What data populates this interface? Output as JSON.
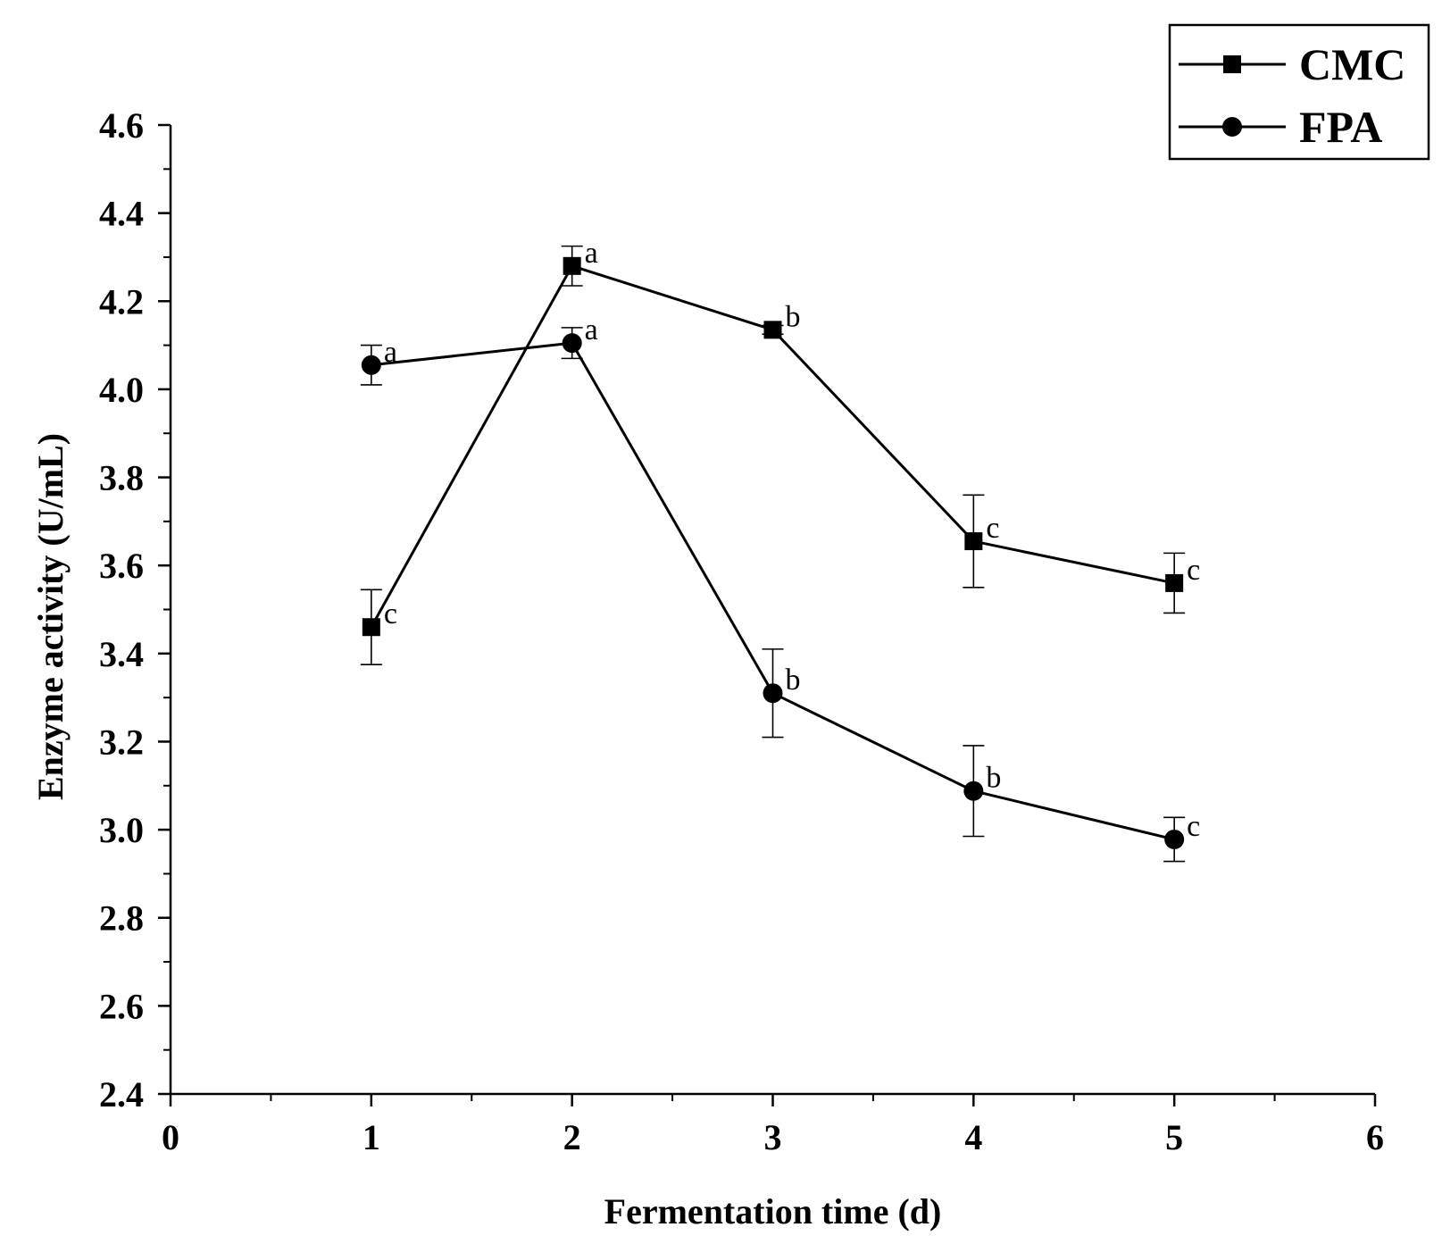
{
  "chart_data": {
    "type": "line",
    "title": "",
    "xlabel": "Fermentation time (d)",
    "ylabel": "Enzyme activity (U/mL)",
    "xlim": [
      0,
      6
    ],
    "ylim": [
      2.4,
      4.6
    ],
    "x_ticks": [
      "0",
      "1",
      "2",
      "3",
      "4",
      "5",
      "6"
    ],
    "y_ticks": [
      "2.4",
      "2.6",
      "2.8",
      "3.0",
      "3.2",
      "3.4",
      "3.6",
      "3.8",
      "4.0",
      "4.2",
      "4.4",
      "4.6"
    ],
    "x": [
      1,
      2,
      3,
      4,
      5
    ],
    "grid": false,
    "legend_position": "top-right",
    "series": [
      {
        "name": "CMC",
        "marker": "square",
        "values": [
          3.46,
          4.28,
          4.135,
          3.655,
          3.56
        ],
        "errors": [
          0.085,
          0.045,
          0.01,
          0.105,
          0.068
        ],
        "labels": [
          "c",
          "a",
          "b",
          "c",
          "c"
        ]
      },
      {
        "name": "FPA",
        "marker": "circle",
        "values": [
          4.055,
          4.105,
          3.31,
          3.088,
          2.978
        ],
        "errors": [
          0.045,
          0.035,
          0.1,
          0.103,
          0.05
        ],
        "labels": [
          "a",
          "a",
          "b",
          "b",
          "c"
        ]
      }
    ],
    "colors": {
      "line": "#000000",
      "background": "#ffffff"
    }
  }
}
